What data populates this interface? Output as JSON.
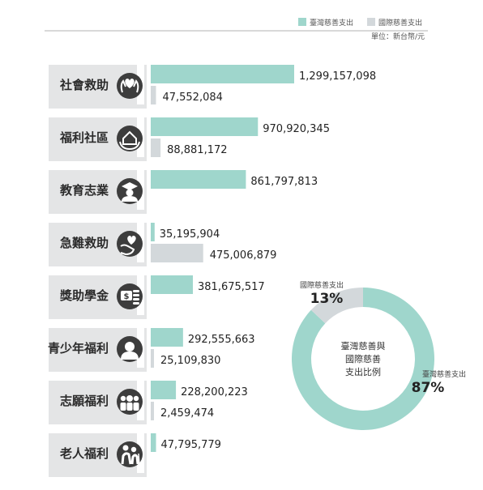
{
  "legend": {
    "domestic": "臺灣慈善支出",
    "international": "國際慈善支出",
    "unit": "單位：新台幣/元"
  },
  "colors": {
    "domestic": "#9fd6cc",
    "international": "#d3d8db",
    "tab": "#e4e5e6",
    "icon": "#3d3d3d"
  },
  "chart_data": [
    {
      "type": "bar",
      "orientation": "horizontal",
      "categories": [
        "社會救助",
        "福利社區",
        "教育志業",
        "急難救助",
        "獎助學金",
        "青少年福利",
        "志願福利",
        "老人福利"
      ],
      "icons": [
        "hands-heart-icon",
        "house-hands-icon",
        "graduate-icon",
        "hand-heart-icon",
        "coins-icon",
        "person-icon",
        "group-icon",
        "elderly-couple-icon"
      ],
      "series": [
        {
          "name": "臺灣慈善支出",
          "values": [
            1299157098,
            970920345,
            861797813,
            35195904,
            381675517,
            292555663,
            228200223,
            47795779
          ],
          "labels": [
            "1,299,157,098",
            "970,920,345",
            "861,797,813",
            "35,195,904",
            "381,675,517",
            "292,555,663",
            "228,200,223",
            "47,795,779"
          ]
        },
        {
          "name": "國際慈善支出",
          "values": [
            47552084,
            88881172,
            null,
            475006879,
            null,
            25109830,
            2459474,
            null
          ],
          "labels": [
            "47,552,084",
            "88,881,172",
            "",
            "475,006,879",
            "",
            "25,109,830",
            "2,459,474",
            ""
          ]
        }
      ]
    },
    {
      "type": "pie",
      "style": "donut",
      "center_text": [
        "臺灣慈善與",
        "國際慈善",
        "支出比例"
      ],
      "slices": [
        {
          "name": "臺灣慈善支出",
          "value": 87,
          "label": "87%"
        },
        {
          "name": "國際慈善支出",
          "value": 13,
          "label": "13%"
        }
      ]
    }
  ]
}
